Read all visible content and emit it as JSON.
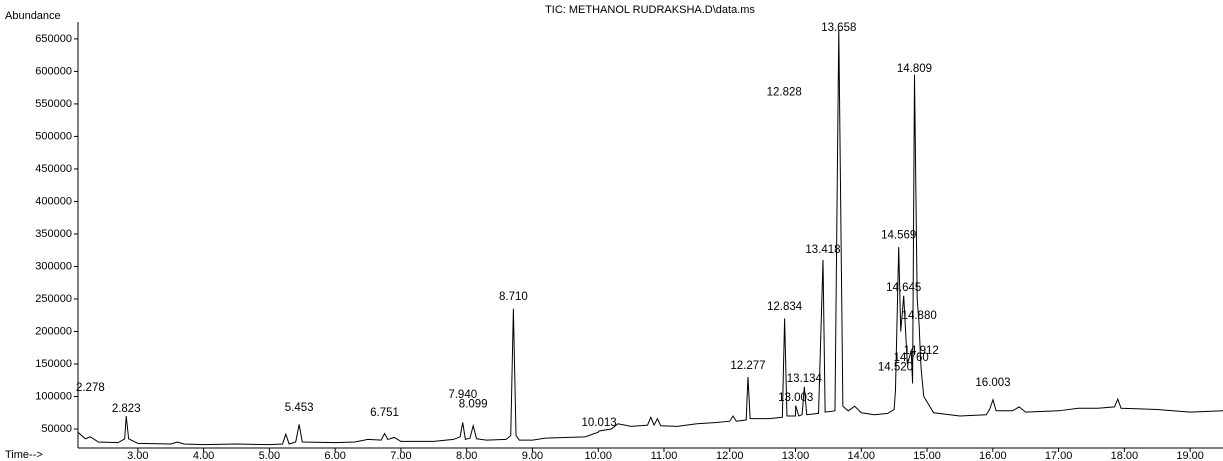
{
  "chart_data": {
    "type": "line",
    "title": "TIC: METHANOL RUDRAKSHA.D\\data.ms",
    "y_label": "Abundance",
    "x_label": "Time-->",
    "color": "#000000",
    "xlim": [
      2.09,
      19.5
    ],
    "ylim": [
      20800,
      676000
    ],
    "xticks": [
      {
        "value": 3,
        "label": "3.00"
      },
      {
        "value": 4,
        "label": "4.00"
      },
      {
        "value": 5,
        "label": "5.00"
      },
      {
        "value": 6,
        "label": "6.00"
      },
      {
        "value": 7,
        "label": "7.00"
      },
      {
        "value": 8,
        "label": "8.00"
      },
      {
        "value": 9,
        "label": "9.00"
      },
      {
        "value": 10,
        "label": "10.00"
      },
      {
        "value": 11,
        "label": "11.00"
      },
      {
        "value": 12,
        "label": "12.00"
      },
      {
        "value": 13,
        "label": "13.00"
      },
      {
        "value": 14,
        "label": "14.00"
      },
      {
        "value": 15,
        "label": "15.00"
      },
      {
        "value": 16,
        "label": "16.00"
      },
      {
        "value": 17,
        "label": "17.00"
      },
      {
        "value": 18,
        "label": "18.00"
      },
      {
        "value": 19,
        "label": "19.00"
      }
    ],
    "yticks": [
      50000,
      100000,
      150000,
      200000,
      250000,
      300000,
      350000,
      400000,
      450000,
      500000,
      550000,
      600000,
      650000
    ],
    "x": [
      2.09,
      2.2,
      2.278,
      2.4,
      2.7,
      2.8,
      2.823,
      2.86,
      3.0,
      3.5,
      3.6,
      3.7,
      4.0,
      4.5,
      5.0,
      5.2,
      5.25,
      5.3,
      5.4,
      5.453,
      5.5,
      6.0,
      6.3,
      6.5,
      6.7,
      6.751,
      6.8,
      6.9,
      7.0,
      7.5,
      7.8,
      7.9,
      7.94,
      7.98,
      8.05,
      8.099,
      8.15,
      8.3,
      8.6,
      8.67,
      8.71,
      8.75,
      8.8,
      9.0,
      9.2,
      9.5,
      9.8,
      10.0,
      10.013,
      10.2,
      10.3,
      10.5,
      10.75,
      10.8,
      10.85,
      10.9,
      10.95,
      11.2,
      11.5,
      11.8,
      12.0,
      12.05,
      12.1,
      12.25,
      12.277,
      12.31,
      12.6,
      12.8,
      12.834,
      12.87,
      13.0,
      13.003,
      13.05,
      13.1,
      13.134,
      13.17,
      13.35,
      13.418,
      13.45,
      13.6,
      13.658,
      13.72,
      13.8,
      13.9,
      14.0,
      14.2,
      14.4,
      14.5,
      14.52,
      14.569,
      14.6,
      14.645,
      14.7,
      14.76,
      14.78,
      14.809,
      14.85,
      14.88,
      14.9,
      14.912,
      14.95,
      15.1,
      15.5,
      15.9,
      15.95,
      16.003,
      16.05,
      16.3,
      16.4,
      16.5,
      17.0,
      17.3,
      17.6,
      17.85,
      17.9,
      17.95,
      18.5,
      19.0,
      19.5
    ],
    "values": [
      45000,
      35000,
      38000,
      30000,
      29000,
      35000,
      70000,
      35000,
      28000,
      27000,
      30000,
      27000,
      26000,
      27000,
      26000,
      27000,
      42000,
      27000,
      30000,
      57000,
      30000,
      29000,
      30000,
      34000,
      33000,
      43000,
      34000,
      37000,
      31000,
      31000,
      34000,
      38000,
      60000,
      34000,
      36000,
      55000,
      35000,
      33000,
      34000,
      40000,
      235000,
      40000,
      33000,
      33000,
      36000,
      37000,
      38000,
      45000,
      47000,
      50000,
      58000,
      54000,
      56000,
      68000,
      56000,
      66000,
      55000,
      54000,
      58000,
      60000,
      62000,
      70000,
      62000,
      64000,
      130000,
      66000,
      66000,
      68000,
      220000,
      70000,
      70000,
      86000,
      70000,
      72000,
      115000,
      72000,
      74000,
      310000,
      76000,
      78000,
      665000,
      85000,
      78000,
      85000,
      75000,
      72000,
      74000,
      80000,
      110000,
      330000,
      200000,
      255000,
      150000,
      170000,
      120000,
      595000,
      250000,
      210000,
      160000,
      140000,
      100000,
      75000,
      70000,
      72000,
      80000,
      95000,
      78000,
      78000,
      84000,
      76000,
      78000,
      82000,
      82000,
      84000,
      96000,
      82000,
      80000,
      76000,
      78000
    ],
    "peak_labels": [
      {
        "time": 2.278,
        "y": 113000
      },
      {
        "time": 2.823,
        "y": 81000
      },
      {
        "time": 5.453,
        "y": 82000
      },
      {
        "time": 6.751,
        "y": 75000
      },
      {
        "time": 7.94,
        "label": "7.940",
        "y": 102000
      },
      {
        "time": 8.099,
        "y": 88000
      },
      {
        "time": 8.71,
        "label": "8.710",
        "y": 253000
      },
      {
        "time": 10.013,
        "y": 59000
      },
      {
        "time": 12.277,
        "y": 147000
      },
      {
        "time": 12.834,
        "y": 238000
      },
      {
        "time": 13.003,
        "y": 98000
      },
      {
        "time": 13.134,
        "y": 127000
      },
      {
        "time": 13.418,
        "y": 325000
      },
      {
        "time": 13.658,
        "y": 667000
      },
      {
        "time": 12.828,
        "y": 568000
      },
      {
        "time": 14.809,
        "y": 604000
      },
      {
        "time": 14.569,
        "y": 348000
      },
      {
        "time": 14.645,
        "y": 267000
      },
      {
        "time": 14.88,
        "label": "14.880",
        "y": 224000
      },
      {
        "time": 14.912,
        "y": 170000
      },
      {
        "time": 14.76,
        "label": "14.760",
        "y": 159000
      },
      {
        "time": 14.52,
        "label": "14.520",
        "y": 145000
      },
      {
        "time": 16.003,
        "y": 121000
      }
    ]
  }
}
